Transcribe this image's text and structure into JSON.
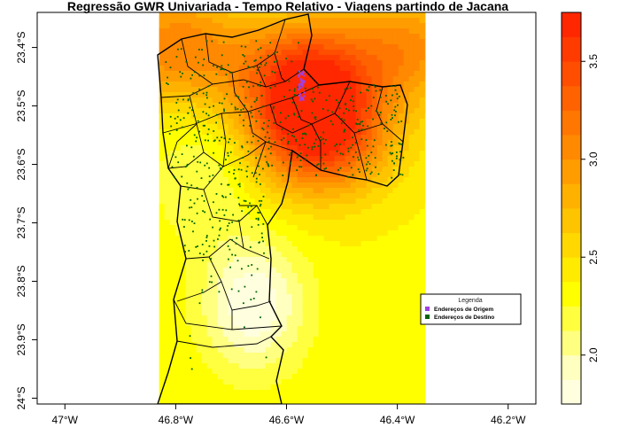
{
  "title": "Regressão GWR Univariada - Tempo Relativo - Viagens partindo de Jacana",
  "x_ticks": [
    {
      "value": -47.0,
      "label": "47°W"
    },
    {
      "value": -46.8,
      "label": "46.8°W"
    },
    {
      "value": -46.6,
      "label": "46.6°W"
    },
    {
      "value": -46.4,
      "label": "46.4°W"
    },
    {
      "value": -46.2,
      "label": "46.2°W"
    }
  ],
  "y_ticks": [
    {
      "value": -23.4,
      "label": "23.4°S"
    },
    {
      "value": -23.5,
      "label": "23.5°S"
    },
    {
      "value": -23.6,
      "label": "23.6°S"
    },
    {
      "value": -23.7,
      "label": "23.7°S"
    },
    {
      "value": -23.8,
      "label": "23.8°S"
    },
    {
      "value": -23.9,
      "label": "23.9°S"
    },
    {
      "value": -24.0,
      "label": "24°S"
    }
  ],
  "xlim": [
    -47.05,
    -46.15
  ],
  "ylim": [
    -24.01,
    -23.34
  ],
  "raster_extent": {
    "lon": [
      -46.83,
      -46.35
    ],
    "lat": [
      -24.01,
      -23.34
    ]
  },
  "colorbar": {
    "ticks": [
      {
        "value": 2.0,
        "label": "2.0"
      },
      {
        "value": 2.5,
        "label": "2.5"
      },
      {
        "value": 3.0,
        "label": "3.0"
      },
      {
        "value": 3.5,
        "label": "3.5"
      }
    ],
    "range": [
      1.75,
      3.75
    ],
    "colors": [
      "#FFFFDF",
      "#FFFFBF",
      "#FFFF80",
      "#FFFF40",
      "#FFFF00",
      "#FFEB00",
      "#FFD800",
      "#FFC400",
      "#FFB100",
      "#FF9D00",
      "#FF8900",
      "#FF7600",
      "#FF6200",
      "#FF4E00",
      "#FF3B00",
      "#FF2700"
    ]
  },
  "legend": {
    "title": "Legenda",
    "items": [
      {
        "label": "Endereços de Origem",
        "color": "#A040E0"
      },
      {
        "label": "Endereços de Destino",
        "color": "#006400"
      }
    ]
  },
  "surface_peaks": [
    {
      "lon": -46.54,
      "lat": -23.55,
      "value": 3.6
    },
    {
      "lon": -46.57,
      "lat": -23.45,
      "value": 3.45
    },
    {
      "lon": -46.8,
      "lat": -23.4,
      "value": 3.1
    },
    {
      "lon": -46.38,
      "lat": -23.4,
      "value": 3.0
    }
  ],
  "surface_lows": [
    {
      "lon": -46.66,
      "lat": -23.84,
      "value": 1.75
    },
    {
      "lon": -46.75,
      "lat": -23.62,
      "value": 2.1
    }
  ],
  "surface_base": 2.35,
  "origin_cluster": {
    "lon": -46.574,
    "lat": -23.465
  }
}
